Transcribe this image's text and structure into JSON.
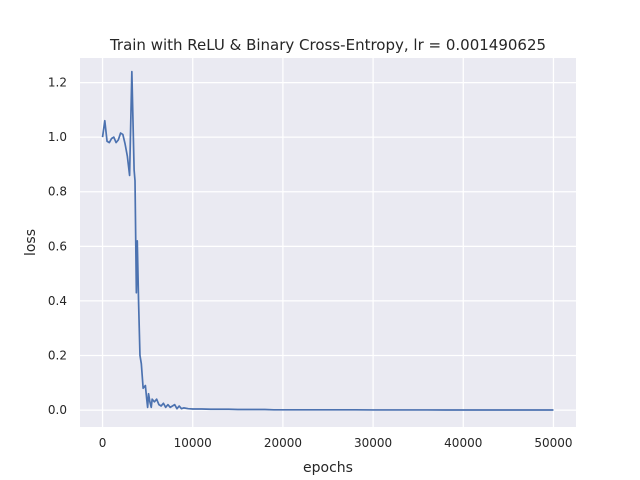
{
  "chart_data": {
    "type": "line",
    "title": "Train with ReLU & Binary Cross-Entropy, lr = 0.001490625",
    "xlabel": "epochs",
    "ylabel": "loss",
    "xlim": [
      -2500,
      52500
    ],
    "ylim": [
      -0.062,
      1.29
    ],
    "grid": true,
    "legend": "none",
    "colors": {
      "plot_background": "#eaeaf2",
      "grid": "#ffffff",
      "line": "#4c72b0",
      "text": "#262626"
    },
    "xticks": [
      {
        "value": 0,
        "label": "0"
      },
      {
        "value": 10000,
        "label": "10000"
      },
      {
        "value": 20000,
        "label": "20000"
      },
      {
        "value": 30000,
        "label": "30000"
      },
      {
        "value": 40000,
        "label": "40000"
      },
      {
        "value": 50000,
        "label": "50000"
      }
    ],
    "yticks": [
      {
        "value": 0.0,
        "label": "0.0"
      },
      {
        "value": 0.2,
        "label": "0.2"
      },
      {
        "value": 0.4,
        "label": "0.4"
      },
      {
        "value": 0.6,
        "label": "0.6"
      },
      {
        "value": 0.8,
        "label": "0.8"
      },
      {
        "value": 1.0,
        "label": "1.0"
      },
      {
        "value": 1.2,
        "label": "1.2"
      }
    ],
    "series": [
      {
        "x": [
          0,
          250,
          500,
          750,
          1000,
          1250,
          1500,
          1750,
          2000,
          2250,
          2500,
          2750,
          3000,
          3250,
          3500,
          3600,
          3750,
          3850,
          4000,
          4150,
          4300,
          4500,
          4750,
          4900,
          5000,
          5100,
          5250,
          5400,
          5500,
          5750,
          6000,
          6250,
          6500,
          6750,
          7000,
          7250,
          7500,
          7750,
          8000,
          8250,
          8500,
          8750,
          9000,
          9500,
          10000,
          11000,
          12000,
          13000,
          14000,
          15000,
          16000,
          17000,
          18000,
          19000,
          20000,
          22000,
          24000,
          26000,
          28000,
          30000,
          32000,
          34000,
          36000,
          38000,
          40000,
          42000,
          44000,
          46000,
          48000,
          50000
        ],
        "y": [
          1.0,
          1.06,
          0.985,
          0.98,
          0.995,
          1.0,
          0.98,
          0.99,
          1.015,
          1.01,
          0.975,
          0.93,
          0.86,
          1.24,
          0.88,
          0.84,
          0.43,
          0.62,
          0.39,
          0.2,
          0.17,
          0.08,
          0.09,
          0.04,
          0.01,
          0.06,
          0.03,
          0.01,
          0.04,
          0.03,
          0.04,
          0.02,
          0.015,
          0.025,
          0.01,
          0.02,
          0.01,
          0.015,
          0.02,
          0.005,
          0.015,
          0.005,
          0.008,
          0.005,
          0.004,
          0.004,
          0.003,
          0.003,
          0.003,
          0.002,
          0.002,
          0.002,
          0.002,
          0.001,
          0.001,
          0.001,
          0.001,
          0.001,
          0.001,
          0.0005,
          0.0005,
          0.0005,
          0.0005,
          0.0004,
          0.0004,
          0.0003,
          0.0003,
          0.0003,
          0.0003,
          0.0002
        ]
      }
    ]
  }
}
